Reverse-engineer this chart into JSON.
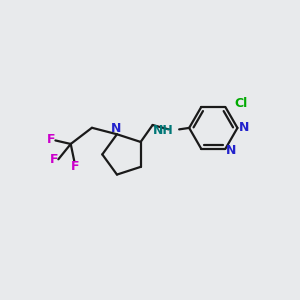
{
  "bg_color": "#e8eaec",
  "bond_color": "#1a1a1a",
  "N_color": "#2222cc",
  "F_color": "#cc00cc",
  "Cl_color": "#00aa00",
  "NH_color": "#007777",
  "line_width": 1.6,
  "figsize": [
    3.0,
    3.0
  ],
  "dpi": 100,
  "xlim": [
    0,
    10
  ],
  "ylim": [
    0,
    10
  ],
  "font_size": 9.0
}
